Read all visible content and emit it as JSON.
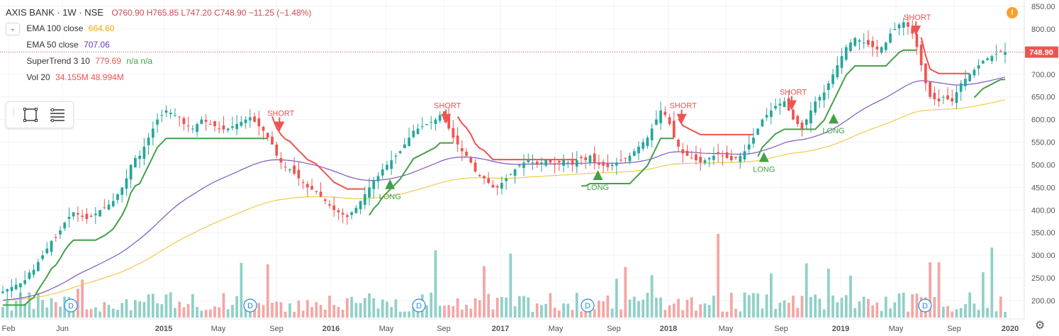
{
  "header": {
    "title": "AXIS BANK · 1W · NSE",
    "ohlc": "O760.90 H765.85 L747.20 C748.90 −11.25 (−1.48%)"
  },
  "indicators": [
    {
      "name": "EMA 100 close",
      "value": "664.60",
      "color": "#f2a900"
    },
    {
      "name": "EMA 50 close",
      "value": "707.06",
      "color": "#673ab7"
    },
    {
      "name": "SuperTrend 3 10",
      "value": "779.69",
      "extra": "n/a n/a",
      "color": "#ef5350",
      "extra_color": "#26a69a"
    },
    {
      "name": "Vol 20",
      "value": "34.155M 48.994M",
      "color": "#ef5350"
    }
  ],
  "icons": {
    "collapse": "chevron-down-icon",
    "rectangle_tool": "rectangle-icon",
    "lines_tool": "horizontal-lines-icon",
    "alert": "alert-icon",
    "settings": "gear-icon"
  },
  "alert_label": "!",
  "chart_data": {
    "type": "candlestick",
    "symbol": "AXIS BANK",
    "interval": "1W",
    "exchange": "NSE",
    "last_price": 748.9,
    "last_price_label": "748.90",
    "colors": {
      "up": "#26a69a",
      "down": "#ef5350",
      "ema100": "#f2c94c",
      "ema50": "#7e57c2",
      "st_up": "#43a047",
      "st_down": "#ef5350",
      "vol_up": "#8fd0c7",
      "vol_down": "#f4a6a4"
    },
    "y_axis": {
      "min": 170,
      "max": 860,
      "ticks": [
        200,
        250,
        300,
        350,
        400,
        450,
        500,
        550,
        600,
        650,
        700,
        750,
        800,
        850
      ],
      "tick_labels": [
        "200.00",
        "250.00",
        "300.00",
        "350.00",
        "400.00",
        "450.00",
        "500.00",
        "550.00",
        "600.00",
        "650.00",
        "700.00",
        "750.00",
        "800.00",
        "850.00"
      ]
    },
    "x_axis": {
      "labels": [
        "Feb",
        "Jun",
        "2015",
        "May",
        "Sep",
        "2016",
        "May",
        "Sep",
        "2017",
        "May",
        "Sep",
        "2018",
        "May",
        "Sep",
        "2019",
        "May",
        "Sep",
        "2020"
      ]
    },
    "x_start": "2014-01-01",
    "close": [
      220,
      225,
      230,
      235,
      238,
      245,
      262,
      268,
      285,
      300,
      315,
      332,
      340,
      355,
      372,
      385,
      395,
      390,
      385,
      380,
      385,
      392,
      400,
      405,
      412,
      420,
      435,
      450,
      470,
      500,
      515,
      520,
      540,
      560,
      580,
      600,
      610,
      620,
      615,
      610,
      605,
      590,
      585,
      580,
      590,
      600,
      595,
      590,
      585,
      580,
      578,
      580,
      585,
      590,
      595,
      600,
      605,
      595,
      585,
      575,
      560,
      545,
      520,
      505,
      495,
      490,
      480,
      470,
      460,
      450,
      445,
      440,
      430,
      420,
      410,
      400,
      395,
      390,
      385,
      395,
      405,
      420,
      435,
      450,
      465,
      475,
      490,
      500,
      510,
      520,
      530,
      545,
      560,
      575,
      580,
      585,
      590,
      595,
      600,
      610,
      600,
      580,
      560,
      545,
      530,
      520,
      505,
      485,
      475,
      470,
      460,
      450,
      450,
      460,
      470,
      480,
      490,
      500,
      505,
      510,
      505,
      500,
      505,
      510,
      505,
      500,
      505,
      510,
      505,
      500,
      510,
      515,
      510,
      520,
      505,
      500,
      498,
      495,
      500,
      505,
      510,
      515,
      520,
      530,
      540,
      550,
      560,
      580,
      600,
      620,
      610,
      590,
      560,
      540,
      525,
      520,
      515,
      510,
      505,
      510,
      515,
      520,
      525,
      520,
      515,
      510,
      515,
      520,
      530,
      545,
      560,
      580,
      600,
      610,
      620,
      630,
      635,
      640,
      620,
      600,
      590,
      580,
      600,
      620,
      640,
      650,
      660,
      680,
      700,
      720,
      740,
      760,
      770,
      780,
      775,
      770,
      765,
      760,
      755,
      760,
      770,
      790,
      800,
      810,
      815,
      805,
      790,
      760,
      720,
      680,
      650,
      645,
      640,
      650,
      645,
      640,
      660,
      680,
      690,
      700,
      710,
      720,
      730,
      735,
      740,
      745,
      750,
      748.9
    ],
    "ema100_end": 664.6,
    "ema50_end": 707.06,
    "supertrend_value": 779.69,
    "signals": [
      {
        "label": "SHORT",
        "date": "2015-09-01",
        "price": 608
      },
      {
        "label": "LONG",
        "date": "2016-05-01",
        "price": 440
      },
      {
        "label": "SHORT",
        "date": "2016-09-01",
        "price": 625
      },
      {
        "label": "LONG",
        "date": "2017-08-01",
        "price": 460
      },
      {
        "label": "SHORT",
        "date": "2018-02-01",
        "price": 625
      },
      {
        "label": "LONG",
        "date": "2018-08-01",
        "price": 500
      },
      {
        "label": "SHORT",
        "date": "2018-10-01",
        "price": 655
      },
      {
        "label": "LONG",
        "date": "2019-01-01",
        "price": 585
      },
      {
        "label": "SHORT",
        "date": "2019-07-01",
        "price": 820
      }
    ],
    "dividend_markers": [
      "D",
      "D",
      "D",
      "D",
      "D"
    ],
    "grid": true
  }
}
